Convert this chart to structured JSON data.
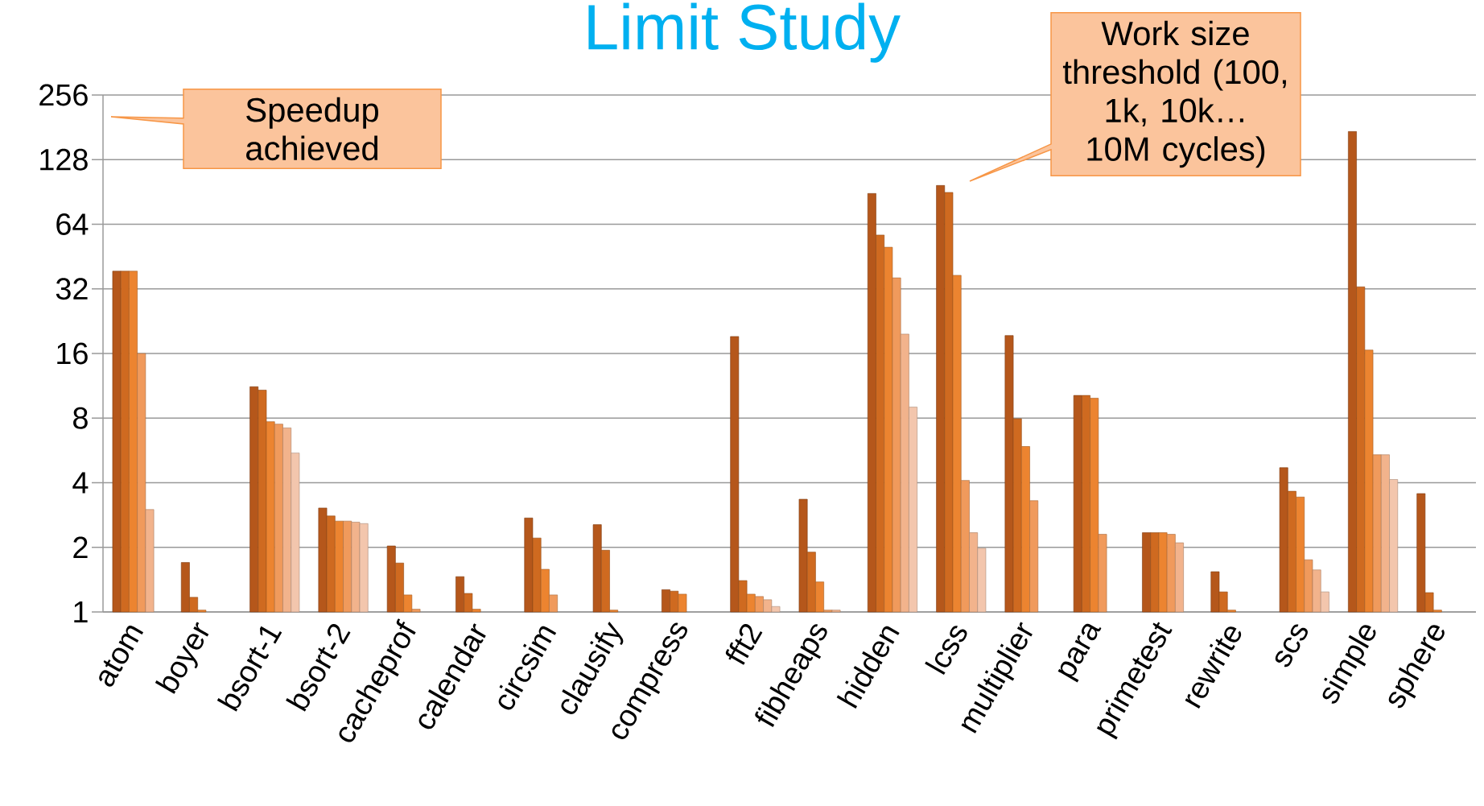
{
  "chart_data": {
    "type": "bar",
    "title": "Limit Study",
    "categories": [
      "atom",
      "boyer",
      "bsort-1",
      "bsort-2",
      "cacheprof",
      "calendar",
      "circsim",
      "clausify",
      "compress",
      "fft2",
      "fibheaps",
      "hidden",
      "lcss",
      "multiplier",
      "para",
      "primetest",
      "rewrite",
      "scs",
      "simple",
      "sphere"
    ],
    "series": [
      {
        "color": "#b5571b",
        "values": [
          38.7,
          1.7,
          11.2,
          3.05,
          2.03,
          1.46,
          2.74,
          2.55,
          1.27,
          19.2,
          3.35,
          89,
          97,
          19.4,
          10.2,
          2.34,
          1.54,
          4.7,
          173,
          3.56
        ]
      },
      {
        "color": "#cf6a20",
        "values": [
          38.7,
          1.17,
          10.8,
          2.8,
          1.69,
          1.22,
          2.21,
          1.94,
          1.25,
          1.4,
          1.9,
          57,
          90,
          7.95,
          10.2,
          2.34,
          1.24,
          3.65,
          32.7,
          1.23
        ]
      },
      {
        "color": "#ec8430",
        "values": [
          38.7,
          1.02,
          7.7,
          2.65,
          1.2,
          1.03,
          1.58,
          1.02,
          1.21,
          1.21,
          1.38,
          50,
          37,
          5.9,
          9.9,
          2.34,
          1.02,
          3.43,
          16.6,
          1.02
        ]
      },
      {
        "color": "#f09a5c",
        "values": [
          16,
          null,
          7.5,
          2.65,
          1.03,
          null,
          1.2,
          null,
          null,
          1.18,
          1.02,
          36,
          4.1,
          3.3,
          2.3,
          2.3,
          null,
          1.75,
          5.4,
          null
        ]
      },
      {
        "color": "#f2b38c",
        "values": [
          3.0,
          null,
          7.2,
          2.62,
          null,
          null,
          null,
          null,
          null,
          1.14,
          1.02,
          19.7,
          2.34,
          null,
          null,
          2.1,
          null,
          1.57,
          5.4,
          null
        ]
      },
      {
        "color": "#f3c6ad",
        "values": [
          null,
          null,
          5.5,
          2.58,
          null,
          null,
          null,
          null,
          null,
          1.06,
          null,
          9.0,
          1.98,
          null,
          null,
          null,
          null,
          1.24,
          4.14,
          null
        ]
      }
    ],
    "ylim": [
      1,
      256
    ],
    "yticks": [
      1,
      2,
      4,
      8,
      16,
      32,
      64,
      128,
      256
    ],
    "log": "y",
    "grid": "y",
    "annotations": [
      "Speedup achieved",
      "Work size threshold (100, 1k, 10k… 10M cycles)"
    ]
  }
}
